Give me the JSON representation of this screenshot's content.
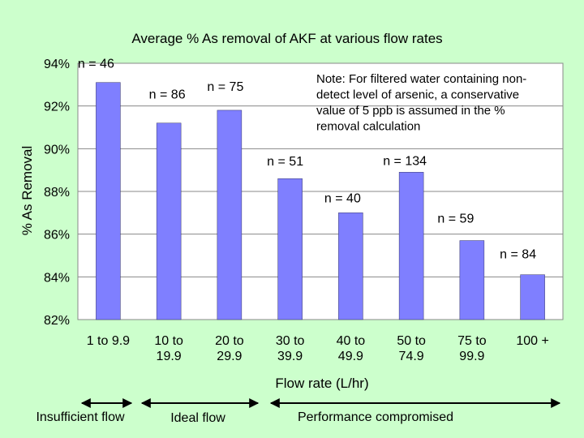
{
  "chart_data": {
    "type": "bar",
    "title": "Average % As removal of AKF at various flow rates",
    "xlabel": "Flow rate (L/hr)",
    "ylabel": "% As Removal",
    "ylim": [
      82,
      94
    ],
    "yticks": [
      "82%",
      "84%",
      "86%",
      "88%",
      "90%",
      "92%",
      "94%"
    ],
    "ytick_values": [
      82,
      84,
      86,
      88,
      90,
      92,
      94
    ],
    "categories": [
      [
        "1 to 9.9"
      ],
      [
        "10 to",
        "19.9"
      ],
      [
        "20 to",
        "29.9"
      ],
      [
        "30 to",
        "39.9"
      ],
      [
        "40 to",
        "49.9"
      ],
      [
        "50 to",
        "74.9"
      ],
      [
        "75 to",
        "99.9"
      ],
      [
        "100 +"
      ]
    ],
    "values": [
      93.1,
      91.2,
      91.8,
      88.6,
      87.0,
      88.9,
      85.7,
      84.1
    ],
    "data_labels": [
      "n = 46",
      "n = 86",
      "n = 75",
      "n = 51",
      "n = 40",
      "n = 134",
      "n = 59",
      "n = 84"
    ],
    "grid": true,
    "bar_color": "#7f7fff",
    "plot_background": "#ffffff",
    "annotation": [
      "Note: For filtered water containing non-",
      "detect level of arsenic, a conservative",
      "value of 5 ppb is assumed in the %",
      "removal calculation"
    ]
  },
  "flow_regions": [
    {
      "label": "Insufficient flow",
      "from": 0,
      "to": 1
    },
    {
      "label": "Ideal flow",
      "from": 1,
      "to": 3
    },
    {
      "label": "Performance compromised",
      "from": 3,
      "to": 8
    }
  ]
}
